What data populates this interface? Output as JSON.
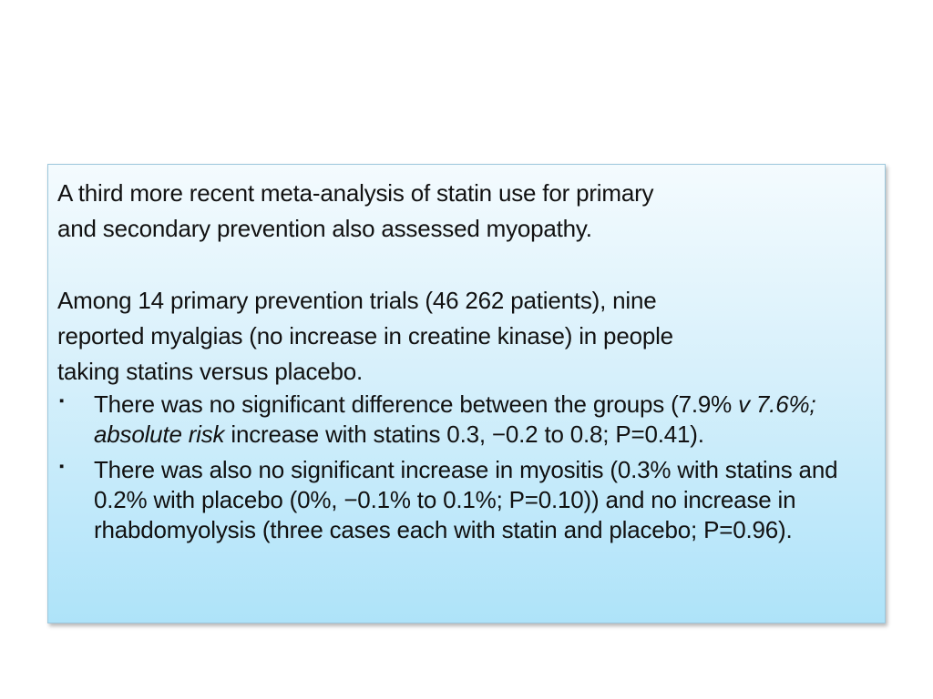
{
  "intro": {
    "line1": "A third more recent meta-analysis of statin use for primary",
    "line2": "and secondary prevention also assessed myopathy."
  },
  "primary": {
    "line1": "Among 14 primary prevention trials (46 262 patients), nine",
    "line2": "reported myalgias (no increase in creatine kinase) in people",
    "line3": "taking statins versus placebo."
  },
  "bullets": {
    "marker": "▪",
    "b1": {
      "part1": "There was no significant difference between the groups (7.9% ",
      "italic": "v 7.6%; absolute risk",
      "part2": " increase with statins 0.3, −0.2 to 0.8; P=0.41)."
    },
    "b2": {
      "text": "There was also no significant increase in myositis (0.3% with statins and 0.2% with placebo (0%, −0.1% to 0.1%; P=0.10)) and no increase in rhabdomyolysis (three cases each with statin and placebo; P=0.96)."
    }
  }
}
